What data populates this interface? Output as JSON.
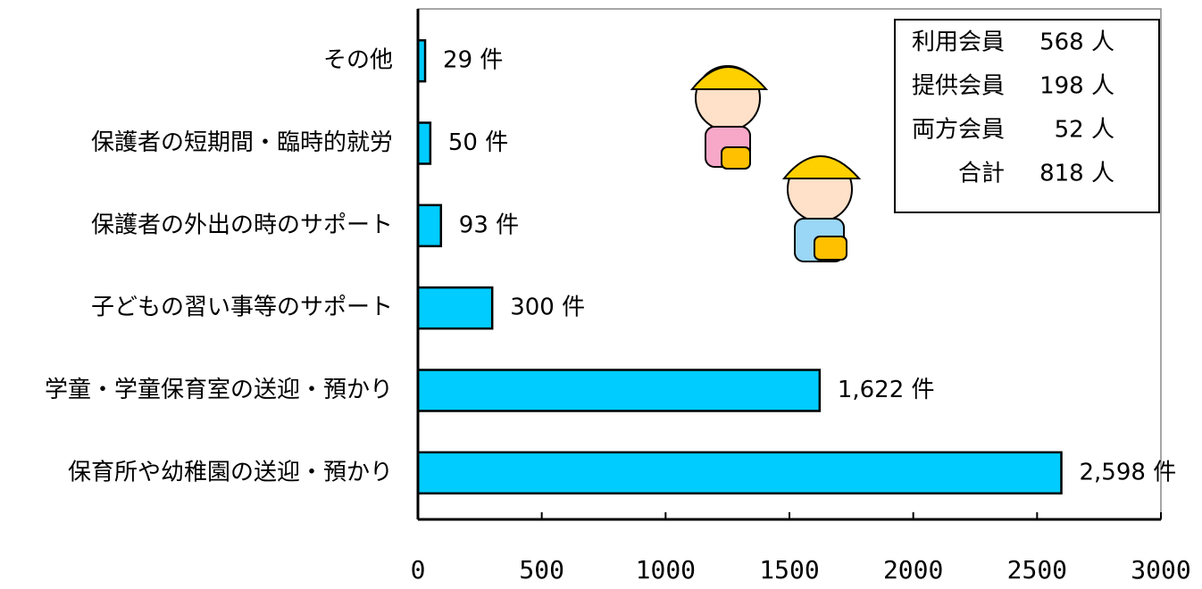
{
  "chart_data": {
    "type": "bar",
    "orientation": "horizontal",
    "categories": [
      "その他",
      "保護者の短期間・臨時的就労",
      "保護者の外出の時のサポート",
      "子どもの習い事等のサポート",
      "学童・学童保育室の送迎・預かり",
      "保育所や幼稚園の送迎・預かり"
    ],
    "values": [
      29,
      50,
      93,
      300,
      1622,
      2598
    ],
    "value_labels": [
      "29 件",
      "50 件",
      "93 件",
      "300 件",
      "1,622 件",
      "2,598 件"
    ],
    "color": "#00ccff",
    "xlim": [
      0,
      3000
    ],
    "xticks": [
      0,
      500,
      1000,
      1500,
      2000,
      2500,
      3000
    ],
    "summary": [
      {
        "label": "利用会員",
        "value": "568 人"
      },
      {
        "label": "提供会員",
        "value": "198 人"
      },
      {
        "label": "両方会員",
        "value": "52 人"
      },
      {
        "label": "合計",
        "value": "818 人"
      }
    ]
  }
}
